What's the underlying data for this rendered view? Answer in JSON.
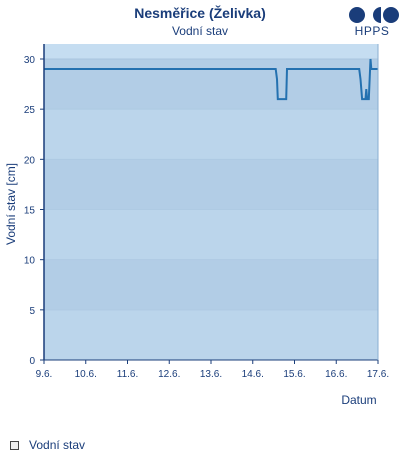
{
  "header": {
    "title": "Nesměřice (Želivka)",
    "subtitle": "Vodní stav",
    "logo_text": "HPPS"
  },
  "legend": {
    "label": "Vodní stav"
  },
  "colors": {
    "fill": "#c5ddf1",
    "band": "#b2cde6",
    "line": "#2471b0",
    "axis": "#1a3d7a",
    "logo": "#1a3d7a"
  },
  "chart_data": {
    "type": "area",
    "xlabel": "Datum",
    "ylabel": "Vodní stav [cm]",
    "ylim": [
      0,
      30
    ],
    "yticks": [
      0,
      5,
      10,
      15,
      20,
      25,
      30
    ],
    "xticks": [
      "9.6.",
      "10.6.",
      "11.6.",
      "12.6.",
      "13.6.",
      "14.6.",
      "15.6.",
      "16.6.",
      "17.6."
    ],
    "grid": true,
    "legend_position": "bottom-left",
    "series": [
      {
        "name": "Vodní stav",
        "x": [
          9.0,
          14.55,
          14.58,
          14.6,
          14.8,
          14.82,
          16.55,
          16.58,
          16.62,
          16.7,
          16.72,
          16.74,
          16.78,
          16.82,
          16.84,
          17.0
        ],
        "values": [
          29,
          29,
          28,
          26,
          26,
          29,
          29,
          28,
          26,
          26,
          27,
          26,
          26,
          30,
          29,
          29
        ]
      }
    ]
  }
}
